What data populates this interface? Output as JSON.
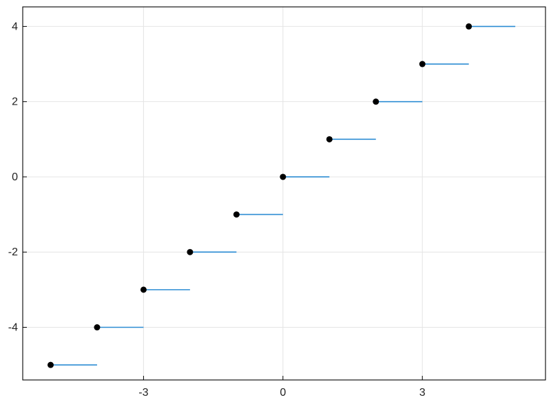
{
  "chart_data": {
    "type": "step",
    "title": "",
    "xlabel": "",
    "ylabel": "",
    "description": "Floor-style step function: horizontal segments [n, n+1) at height n, filled circular marker at the closed left endpoint of each segment",
    "segments": [
      {
        "x0": -5,
        "x1": -4,
        "y": -5
      },
      {
        "x0": -4,
        "x1": -3,
        "y": -4
      },
      {
        "x0": -3,
        "x1": -2,
        "y": -3
      },
      {
        "x0": -2,
        "x1": -1,
        "y": -2
      },
      {
        "x0": -1,
        "x1": 0,
        "y": -1
      },
      {
        "x0": 0,
        "x1": 1,
        "y": 0
      },
      {
        "x0": 1,
        "x1": 2,
        "y": 1
      },
      {
        "x0": 2,
        "x1": 3,
        "y": 2
      },
      {
        "x0": 3,
        "x1": 4,
        "y": 3
      },
      {
        "x0": 4,
        "x1": 5,
        "y": 4
      }
    ],
    "xticks": [
      -3,
      0,
      3
    ],
    "yticks": [
      -4,
      -2,
      0,
      2,
      4
    ],
    "xtick_labels": [
      "-3",
      "0",
      "3"
    ],
    "ytick_labels": [
      "-4",
      "-2",
      "0",
      "2",
      "4"
    ],
    "xlim": [
      -5.6,
      5.65
    ],
    "ylim": [
      -5.4,
      4.52
    ],
    "grid": true,
    "legend": false,
    "marker": "filled-circle-left-endpoint",
    "marker_size": 4.5,
    "line_width": 1.6,
    "colors": {
      "segment": "#2b8cd3",
      "marker": "#000000",
      "grid": "#e4e4e4",
      "frame": "#000000",
      "tick_label": "#222222",
      "background": "#ffffff"
    }
  }
}
